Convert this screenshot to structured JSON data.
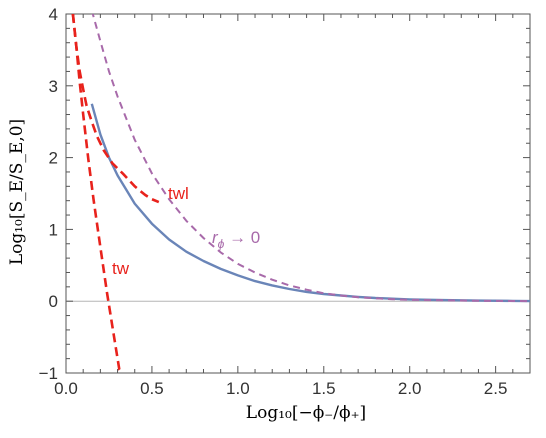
{
  "chart_data": {
    "type": "line",
    "xlabel": "Log₁₀[−ϕ₋/ϕ₊]",
    "ylabel": "Log₁₀[S_E/S_E,0]",
    "xlim": [
      0,
      2.7
    ],
    "ylim": [
      -1,
      4
    ],
    "x_ticks": [
      "0.0",
      "0.5",
      "1.0",
      "1.5",
      "2.0",
      "2.5"
    ],
    "y_ticks": [
      "−1",
      "0",
      "1",
      "2",
      "3",
      "4"
    ],
    "grid": false,
    "legend": "none",
    "reference_line_y": 0,
    "annotations": {
      "twl": "twl",
      "tw": "tw",
      "rphi_prefix": "r",
      "rphi_sub": "ϕ",
      "rphi_suffix": " → 0"
    },
    "colors": {
      "solid": "#6a85b8",
      "limit": "#a86aaa",
      "tw": "#e8221c",
      "twl": "#e8221c",
      "zero_line": "#b5b5b5"
    },
    "series": [
      {
        "style": "solid",
        "x": [
          0.15,
          0.2,
          0.25,
          0.3,
          0.4,
          0.5,
          0.6,
          0.7,
          0.8,
          0.9,
          1.0,
          1.1,
          1.2,
          1.3,
          1.4,
          1.5,
          1.6,
          1.7,
          1.8,
          1.9,
          2.0,
          2.2,
          2.4,
          2.6,
          2.7
        ],
        "y": [
          2.75,
          2.32,
          2.0,
          1.75,
          1.36,
          1.08,
          0.86,
          0.69,
          0.56,
          0.45,
          0.36,
          0.28,
          0.22,
          0.17,
          0.13,
          0.1,
          0.08,
          0.06,
          0.045,
          0.035,
          0.025,
          0.015,
          0.008,
          0.004,
          0.002
        ]
      },
      {
        "style": "dashed",
        "x": [
          0.15,
          0.2,
          0.25,
          0.3,
          0.4,
          0.5,
          0.6,
          0.7,
          0.8,
          0.9,
          1.0,
          1.1,
          1.2,
          1.3,
          1.4,
          1.5,
          1.6,
          1.7,
          1.8,
          1.9,
          2.0,
          2.2,
          2.4,
          2.6,
          2.7
        ],
        "y": [
          4.05,
          3.62,
          3.2,
          2.85,
          2.25,
          1.78,
          1.42,
          1.12,
          0.88,
          0.68,
          0.52,
          0.4,
          0.3,
          0.22,
          0.16,
          0.11,
          0.08,
          0.055,
          0.04,
          0.028,
          0.02,
          0.012,
          0.006,
          0.003,
          0.002
        ]
      },
      {
        "style": "dashed",
        "x": [
          0.04,
          0.06,
          0.08,
          0.1,
          0.12,
          0.15,
          0.18,
          0.22,
          0.27,
          0.33,
          0.4,
          0.46,
          0.5,
          0.54
        ],
        "y": [
          4.0,
          3.55,
          3.2,
          2.95,
          2.72,
          2.5,
          2.3,
          2.1,
          1.92,
          1.78,
          1.6,
          1.48,
          1.42,
          1.38
        ]
      },
      {
        "style": "dashed",
        "x": [
          0.04,
          0.06,
          0.08,
          0.1,
          0.13,
          0.16,
          0.2,
          0.24,
          0.28,
          0.31,
          0.33
        ],
        "y": [
          4.0,
          3.55,
          3.05,
          2.6,
          1.98,
          1.42,
          0.75,
          0.1,
          -0.5,
          -0.95,
          -1.0
        ]
      }
    ]
  }
}
